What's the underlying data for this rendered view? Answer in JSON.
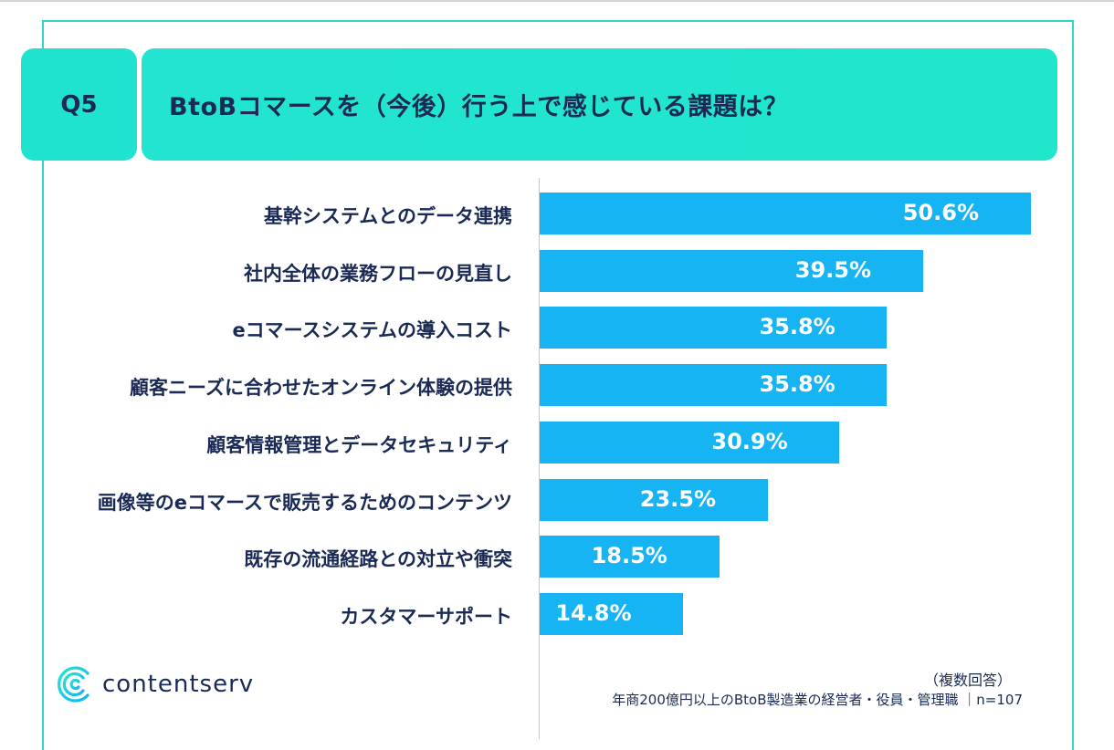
{
  "header": {
    "q_number": "Q5",
    "title": "BtoBコマースを（今後）行う上で感じている課題は？"
  },
  "chart_data": {
    "type": "bar",
    "orientation": "horizontal",
    "title": "BtoBコマースを（今後）行う上で感じている課題は？",
    "categories": [
      "基幹システムとのデータ連携",
      "社内全体の業務フローの見直し",
      "eコマースシステムの導入コスト",
      "顧客ニーズに合わせたオンライン体験の提供",
      "顧客情報管理とデータセキュリティ",
      "画像等のeコマースで販売するためのコンテンツ",
      "既存の流通経路との対立や衝突",
      "カスタマーサポート"
    ],
    "values": [
      50.6,
      39.5,
      35.8,
      35.8,
      30.9,
      23.5,
      18.5,
      14.8
    ],
    "value_labels": [
      "50.6%",
      "39.5%",
      "35.8%",
      "35.8%",
      "30.9%",
      "23.5%",
      "18.5%",
      "14.8%"
    ],
    "unit": "%",
    "bar_color": "#16b4f2",
    "xlim": [
      0,
      51
    ]
  },
  "footer": {
    "logo_text": "contentserv",
    "note_multiple": "（複数回答）",
    "note_sample": "年商200億円以上のBtoB製造業の経営者・役員・管理職 ｜n=107"
  },
  "colors": {
    "accent": "#1fe3cf",
    "text": "#1a2a55",
    "bar": "#16b4f2"
  }
}
